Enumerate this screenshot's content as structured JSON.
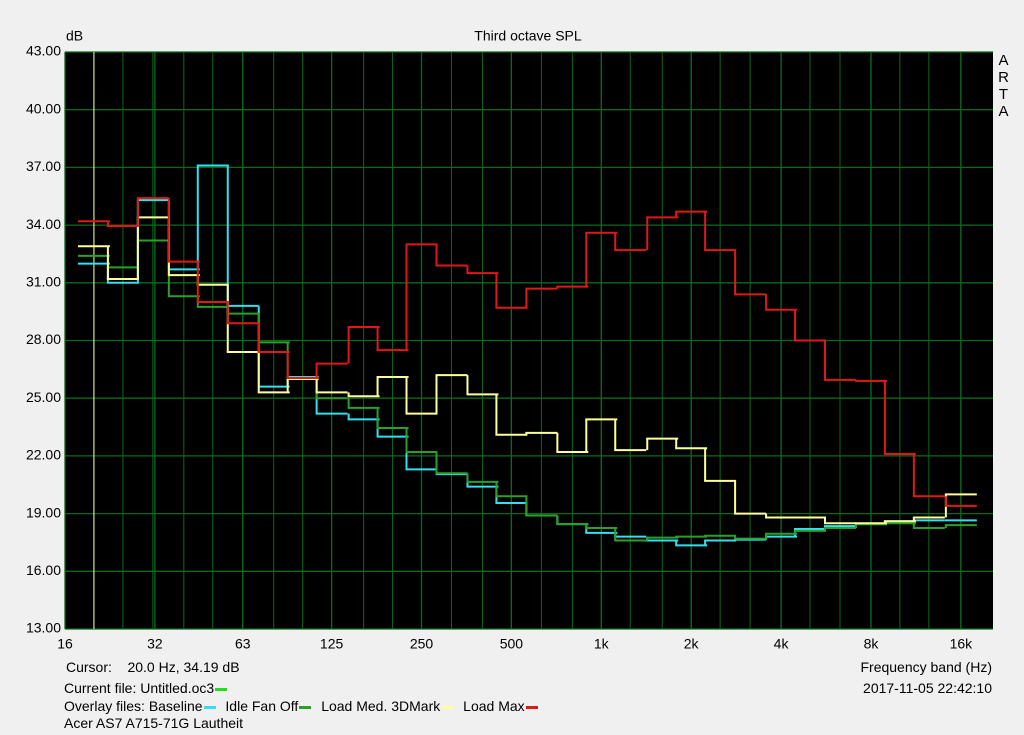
{
  "chart_data": {
    "type": "step",
    "title": "Third octave SPL",
    "y_label": "dB",
    "x_label": "Frequency band (Hz)",
    "x": [
      20,
      25,
      31.5,
      40,
      50,
      63,
      80,
      100,
      125,
      160,
      200,
      250,
      315,
      400,
      500,
      630,
      800,
      1000,
      1250,
      1600,
      2000,
      2500,
      3150,
      4000,
      5000,
      6300,
      8000,
      10000,
      12500,
      16000
    ],
    "series": [
      {
        "name": "Baseline",
        "color": "#33e0f0",
        "values": [
          32.0,
          31.0,
          35.3,
          31.7,
          37.1,
          29.8,
          25.6,
          26.1,
          24.2,
          23.9,
          23.0,
          21.3,
          21.05,
          20.4,
          19.55,
          18.9,
          18.45,
          18.0,
          17.8,
          17.6,
          17.35,
          17.6,
          17.65,
          17.8,
          18.2,
          18.35,
          18.45,
          18.6,
          18.65,
          18.65
        ]
      },
      {
        "name": "Idle Fan Off",
        "color": "#2aa02a",
        "values": [
          32.4,
          31.8,
          33.2,
          30.3,
          29.75,
          29.4,
          27.9,
          26.05,
          25.0,
          24.5,
          23.45,
          22.2,
          21.1,
          20.65,
          19.9,
          18.9,
          18.45,
          18.25,
          17.6,
          17.75,
          17.8,
          17.85,
          17.7,
          17.95,
          18.1,
          18.25,
          18.45,
          18.5,
          18.25,
          18.4
        ]
      },
      {
        "name": "Load Med. 3DMark",
        "color": "#ffff99",
        "values": [
          32.9,
          31.2,
          34.4,
          31.4,
          30.9,
          27.4,
          25.3,
          26.0,
          25.3,
          25.1,
          26.1,
          24.2,
          26.2,
          25.2,
          23.1,
          23.2,
          22.2,
          23.9,
          22.3,
          22.9,
          22.4,
          20.7,
          19.0,
          18.8,
          18.8,
          18.5,
          18.5,
          18.6,
          18.8,
          20.0
        ]
      },
      {
        "name": "Load Max",
        "color": "#e01818",
        "values": [
          34.2,
          33.95,
          35.4,
          32.1,
          30.0,
          28.9,
          27.4,
          26.05,
          26.8,
          28.7,
          27.5,
          33.0,
          31.9,
          31.5,
          29.7,
          30.7,
          30.8,
          33.6,
          32.7,
          34.4,
          34.7,
          32.7,
          30.4,
          29.6,
          28.0,
          25.95,
          25.9,
          22.1,
          19.9,
          19.4
        ]
      }
    ],
    "xlim": [
      16,
      20500
    ],
    "log_x": true,
    "xticks": [
      16,
      32,
      63,
      125,
      250,
      500,
      {
        "value": 1000,
        "label": "1k"
      },
      {
        "value": 2000,
        "label": "2k"
      },
      {
        "value": 4000,
        "label": "4k"
      },
      {
        "value": 8000,
        "label": "8k"
      },
      {
        "value": 16000,
        "label": "16k"
      }
    ],
    "ylim": [
      13,
      43
    ],
    "yticks": [
      {
        "value": 13,
        "label": "13.00"
      },
      {
        "value": 16,
        "label": "16.00"
      },
      {
        "value": 19,
        "label": "19.00"
      },
      {
        "value": 22,
        "label": "22.00"
      },
      {
        "value": 25,
        "label": "25.00"
      },
      {
        "value": 28,
        "label": "28.00"
      },
      {
        "value": 31,
        "label": "31.00"
      },
      {
        "value": 34,
        "label": "34.00"
      },
      {
        "value": 37,
        "label": "37.00"
      },
      {
        "value": 40,
        "label": "40.00"
      },
      {
        "value": 43,
        "label": "43.00"
      }
    ],
    "grid": true,
    "grid_color": "#0a6a1a"
  },
  "cursor": {
    "caption": "Cursor:",
    "x": 20,
    "label": "20.0 Hz, 34.19 dB",
    "color": "#ffffb0"
  },
  "current_file": {
    "caption": "Current file:",
    "name": "Untitled.oc3",
    "color": "#22dd22"
  },
  "overlay_caption": "Overlay files:",
  "timestamp": "2017-11-05  22:42:10",
  "measurement_title": "Acer AS7 A715-71G Lautheit",
  "brand": "ARTA"
}
